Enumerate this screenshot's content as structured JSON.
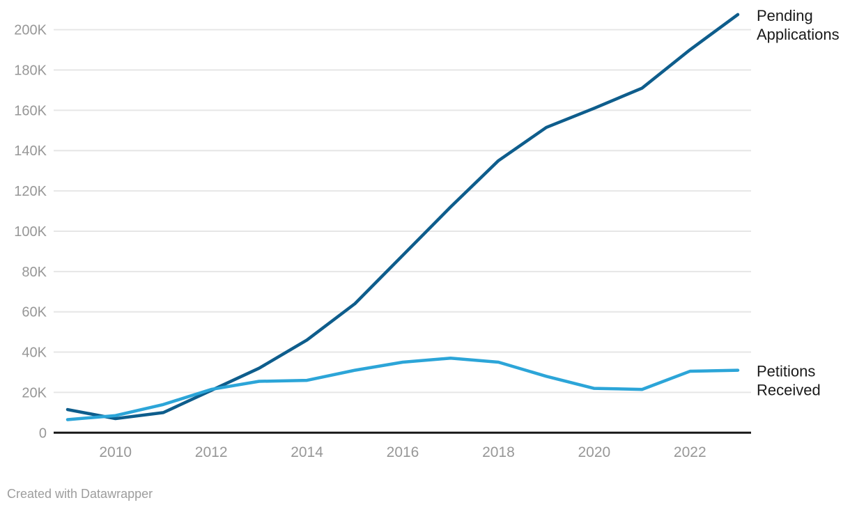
{
  "chart_data": {
    "type": "line",
    "x": [
      2009,
      2010,
      2011,
      2012,
      2013,
      2014,
      2015,
      2016,
      2017,
      2018,
      2019,
      2020,
      2021,
      2022,
      2023
    ],
    "series": [
      {
        "name": "Pending Applications",
        "label_lines": [
          "Pending",
          "Applications"
        ],
        "color": "#0e5d8c",
        "values": [
          11500,
          7000,
          10000,
          21000,
          32000,
          46000,
          64000,
          88000,
          112000,
          135000,
          151500,
          161000,
          171000,
          190000,
          207500
        ]
      },
      {
        "name": "Petitions Received",
        "label_lines": [
          "Petitions",
          "Received"
        ],
        "color": "#2ca5d8",
        "values": [
          6500,
          8500,
          14000,
          21500,
          25500,
          26000,
          31000,
          35000,
          37000,
          35000,
          28000,
          22000,
          21500,
          30500,
          31000
        ]
      }
    ],
    "title": "",
    "xlabel": "",
    "ylabel": "",
    "ylim": [
      0,
      215000
    ],
    "yticks": [
      0,
      20000,
      40000,
      60000,
      80000,
      100000,
      120000,
      140000,
      160000,
      180000,
      200000
    ],
    "ytick_labels": [
      "0",
      "20K",
      "40K",
      "60K",
      "80K",
      "100K",
      "120K",
      "140K",
      "160K",
      "180K",
      "200K"
    ],
    "xticks": [
      2010,
      2012,
      2014,
      2016,
      2018,
      2020,
      2022
    ],
    "grid": "horizontal",
    "legend_position": "line-end-labels"
  },
  "colors": {
    "series_dark": "#0e5d8c",
    "series_light": "#2ca5d8",
    "gridline": "#e6e6e6",
    "baseline": "#191919",
    "tick_text": "#979797",
    "label_text": "#1a1a1a",
    "footer_text": "#9d9d9d",
    "background": "#ffffff"
  },
  "footer": {
    "attribution": "Created with Datawrapper"
  }
}
